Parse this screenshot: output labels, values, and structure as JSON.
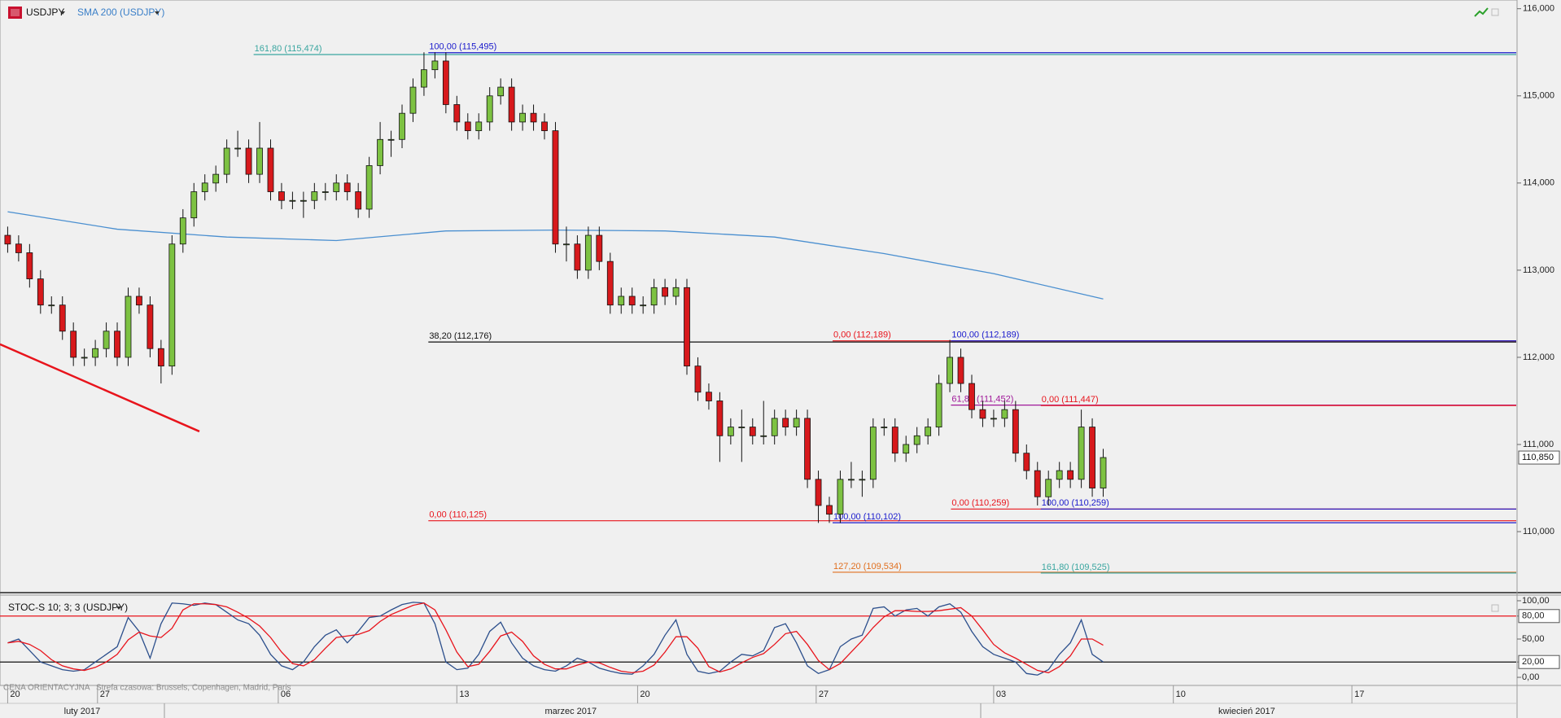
{
  "chart_data": [
    {
      "type": "candlestick",
      "title": "USDJPY",
      "xlim": [
        -0.7,
        137.7
      ],
      "ylim": [
        109.3,
        116.1
      ],
      "yticks": [
        {
          "value": 110,
          "label": "110,000"
        },
        {
          "value": 111,
          "label": "111,000"
        },
        {
          "value": 112,
          "label": "112,000"
        },
        {
          "value": 113,
          "label": "113,000"
        },
        {
          "value": 114,
          "label": "114,000"
        },
        {
          "value": 115,
          "label": "115,000"
        },
        {
          "value": 116,
          "label": "116,000"
        }
      ],
      "candles": {
        "up_color": "#7dc242",
        "down_color": "#d7191c",
        "open": [
          113.4,
          113.3,
          113.2,
          112.9,
          112.6,
          112.6,
          112.3,
          112.0,
          112.0,
          112.1,
          112.3,
          112.0,
          112.7,
          112.6,
          112.1,
          111.9,
          113.3,
          113.6,
          113.9,
          114.0,
          114.1,
          114.4,
          114.4,
          114.1,
          114.4,
          113.9,
          113.8,
          113.8,
          113.8,
          113.9,
          113.9,
          114.0,
          113.9,
          113.7,
          114.2,
          114.5,
          114.5,
          114.8,
          115.1,
          115.3,
          115.4,
          114.9,
          114.7,
          114.6,
          114.7,
          115.0,
          115.1,
          114.7,
          114.8,
          114.7,
          114.6,
          113.3,
          113.3,
          113.0,
          113.4,
          113.1,
          112.6,
          112.7,
          112.6,
          112.6,
          112.8,
          112.7,
          112.8,
          111.9,
          111.6,
          111.5,
          111.1,
          111.2,
          111.2,
          111.1,
          111.1,
          111.3,
          111.2,
          111.3,
          110.6,
          110.3,
          110.2,
          110.6,
          110.6,
          110.6,
          111.2,
          111.2,
          110.9,
          111.0,
          111.1,
          111.2,
          111.7,
          112.0,
          111.7,
          111.4,
          111.3,
          111.3,
          111.4,
          110.9,
          110.7,
          110.4,
          110.6,
          110.7,
          110.6,
          111.2,
          110.5
        ],
        "high": [
          113.5,
          113.4,
          113.3,
          113.0,
          112.7,
          112.7,
          112.4,
          112.1,
          112.2,
          112.4,
          112.4,
          112.8,
          112.8,
          112.7,
          112.2,
          113.4,
          113.7,
          114.0,
          114.1,
          114.2,
          114.5,
          114.6,
          114.5,
          114.7,
          114.5,
          114.0,
          113.9,
          113.9,
          114.0,
          114.0,
          114.1,
          114.1,
          114.0,
          114.3,
          114.7,
          114.6,
          114.9,
          115.2,
          115.5,
          115.5,
          115.5,
          115.0,
          114.8,
          114.8,
          115.1,
          115.2,
          115.2,
          114.9,
          114.9,
          114.8,
          114.7,
          113.5,
          113.4,
          113.5,
          113.5,
          113.2,
          112.8,
          112.8,
          112.7,
          112.9,
          112.9,
          112.9,
          112.9,
          112.0,
          111.7,
          111.6,
          111.3,
          111.4,
          111.3,
          111.5,
          111.4,
          111.4,
          111.4,
          111.4,
          110.7,
          110.4,
          110.7,
          110.8,
          110.7,
          111.3,
          111.3,
          111.3,
          111.1,
          111.2,
          111.3,
          111.8,
          112.2,
          112.1,
          111.8,
          111.5,
          111.4,
          111.5,
          111.5,
          111.0,
          110.8,
          110.7,
          110.8,
          110.8,
          111.4,
          111.3,
          110.95
        ],
        "low": [
          113.2,
          113.1,
          112.8,
          112.5,
          112.5,
          112.2,
          111.9,
          111.9,
          111.9,
          112.0,
          111.9,
          111.9,
          112.5,
          112.0,
          111.7,
          111.8,
          113.2,
          113.5,
          113.8,
          113.9,
          114.0,
          114.3,
          114.0,
          114.0,
          113.8,
          113.7,
          113.7,
          113.6,
          113.7,
          113.8,
          113.8,
          113.8,
          113.6,
          113.6,
          114.1,
          114.3,
          114.4,
          114.7,
          115.0,
          115.2,
          114.8,
          114.6,
          114.5,
          114.5,
          114.6,
          114.9,
          114.6,
          114.6,
          114.6,
          114.5,
          113.2,
          113.1,
          112.9,
          112.9,
          113.0,
          112.5,
          112.5,
          112.5,
          112.5,
          112.5,
          112.6,
          112.6,
          111.8,
          111.5,
          111.4,
          110.8,
          111.0,
          110.8,
          111.0,
          111.0,
          111.0,
          111.1,
          111.1,
          110.5,
          110.1,
          110.1,
          110.1,
          110.5,
          110.4,
          110.5,
          111.1,
          110.8,
          110.8,
          110.9,
          111.0,
          111.1,
          111.6,
          111.6,
          111.3,
          111.2,
          111.2,
          111.2,
          110.8,
          110.6,
          110.3,
          110.3,
          110.5,
          110.5,
          110.5,
          110.4,
          110.4
        ],
        "close": [
          113.3,
          113.2,
          112.9,
          112.6,
          112.6,
          112.3,
          112.0,
          112.0,
          112.1,
          112.3,
          112.0,
          112.7,
          112.6,
          112.1,
          111.9,
          113.3,
          113.6,
          113.9,
          114.0,
          114.1,
          114.4,
          114.4,
          114.1,
          114.4,
          113.9,
          113.8,
          113.8,
          113.8,
          113.9,
          113.9,
          114.0,
          113.9,
          113.7,
          114.2,
          114.5,
          114.5,
          114.8,
          115.1,
          115.3,
          115.4,
          114.9,
          114.7,
          114.6,
          114.7,
          115.0,
          115.1,
          114.7,
          114.8,
          114.7,
          114.6,
          113.3,
          113.3,
          113.0,
          113.4,
          113.1,
          112.6,
          112.7,
          112.6,
          112.6,
          112.8,
          112.7,
          112.8,
          111.9,
          111.6,
          111.5,
          111.1,
          111.2,
          111.2,
          111.1,
          111.1,
          111.3,
          111.2,
          111.3,
          110.6,
          110.3,
          110.2,
          110.6,
          110.6,
          110.6,
          111.2,
          111.2,
          110.9,
          111.0,
          111.1,
          111.2,
          111.7,
          112.0,
          111.7,
          111.4,
          111.3,
          111.3,
          111.4,
          110.9,
          110.7,
          110.4,
          110.6,
          110.7,
          110.6,
          111.2,
          110.5,
          110.85
        ]
      },
      "overlays": [
        {
          "name": "SMA 200 (USDJPY)",
          "color": "#4a8fd0",
          "x": [
            0,
            10,
            20,
            30,
            40,
            50,
            60,
            70,
            80,
            90,
            100
          ],
          "values": [
            113.67,
            113.47,
            113.38,
            113.34,
            113.45,
            113.46,
            113.45,
            113.38,
            113.19,
            112.96,
            112.67
          ]
        }
      ],
      "trendline": {
        "color": "#e8141c",
        "x": [
          -0.7,
          17.5
        ],
        "values": [
          112.15,
          111.15
        ]
      },
      "levels": [
        {
          "label": "161,80 (115,474)",
          "value": 115.474,
          "start": 22.45,
          "color": "#3aa6a0"
        },
        {
          "label": "100,00 (115,495)",
          "value": 115.495,
          "start": 38.4,
          "color": "#1a1acc"
        },
        {
          "label": "38,20 (112,176)",
          "value": 112.176,
          "start": 38.4,
          "color": "#111111"
        },
        {
          "label": "0,00 (112,189)",
          "value": 112.189,
          "start": 75.3,
          "color": "#e8141c"
        },
        {
          "label": "100,00 (112,189)",
          "value": 112.189,
          "start": 86.1,
          "color": "#1a1acc"
        },
        {
          "label": "61,80 (111,452)",
          "value": 111.452,
          "start": 86.1,
          "color": "#a0189a"
        },
        {
          "label": "0,00 (111,447)",
          "value": 111.447,
          "start": 94.3,
          "color": "#e8141c"
        },
        {
          "label": "0,00 (110,259)",
          "value": 110.259,
          "start": 86.1,
          "color": "#e8141c"
        },
        {
          "label": "100,00 (110,259)",
          "value": 110.259,
          "start": 94.3,
          "color": "#1a1acc"
        },
        {
          "label": "0,00 (110,125)",
          "value": 110.125,
          "start": 38.4,
          "color": "#e8141c"
        },
        {
          "label": "100,00 (110,102)",
          "value": 110.102,
          "start": 75.3,
          "color": "#1a1acc"
        },
        {
          "label": "127,20 (109,534)",
          "value": 109.534,
          "start": 75.3,
          "color": "#e07020"
        },
        {
          "label": "161,80 (109,525)",
          "value": 109.525,
          "start": 94.3,
          "color": "#3aa6a0"
        }
      ],
      "last_price": {
        "value": 110.85,
        "label": "110,850"
      }
    },
    {
      "type": "line",
      "title": "STOC-S 10; 3; 3 (USDJPY)",
      "ylim": [
        -10.6,
        107.4
      ],
      "yticks": [
        {
          "value": 0,
          "label": "0,00"
        },
        {
          "value": 20,
          "label": "20,00",
          "boxed": true
        },
        {
          "value": 50,
          "label": "50,00"
        },
        {
          "value": 80,
          "label": "80,00",
          "boxed": true
        },
        {
          "value": 100,
          "label": "100,00"
        }
      ],
      "levels": [
        {
          "value": 80,
          "color": "#e8141c"
        },
        {
          "value": 20,
          "color": "#111111"
        }
      ],
      "series": [
        {
          "color": "#2c4f8c",
          "values": [
            45,
            50,
            35,
            20,
            15,
            10,
            8,
            10,
            20,
            30,
            40,
            78,
            60,
            25,
            70,
            97,
            96,
            94,
            97,
            95,
            85,
            75,
            70,
            55,
            30,
            15,
            10,
            20,
            40,
            55,
            62,
            45,
            60,
            78,
            80,
            88,
            95,
            98,
            97,
            70,
            20,
            10,
            12,
            30,
            60,
            72,
            45,
            25,
            15,
            10,
            8,
            15,
            25,
            20,
            12,
            8,
            5,
            4,
            15,
            30,
            55,
            75,
            30,
            8,
            5,
            8,
            20,
            30,
            28,
            35,
            65,
            70,
            45,
            15,
            5,
            10,
            40,
            50,
            55,
            90,
            92,
            80,
            88,
            90,
            80,
            92,
            96,
            85,
            60,
            40,
            30,
            25,
            20,
            5,
            3,
            10,
            30,
            45,
            75,
            30,
            20
          ]
        },
        {
          "color": "#e8141c",
          "values": [
            45,
            47,
            43,
            35,
            23,
            15,
            11,
            9,
            13,
            20,
            30,
            49,
            59,
            54,
            52,
            64,
            88,
            96,
            96,
            95,
            92,
            85,
            77,
            67,
            52,
            33,
            18,
            15,
            23,
            38,
            52,
            54,
            56,
            61,
            73,
            82,
            88,
            94,
            97,
            88,
            62,
            33,
            14,
            17,
            34,
            54,
            59,
            47,
            28,
            17,
            11,
            11,
            16,
            20,
            19,
            13,
            8,
            6,
            8,
            16,
            33,
            53,
            53,
            38,
            14,
            7,
            11,
            19,
            26,
            31,
            43,
            57,
            60,
            43,
            22,
            10,
            18,
            33,
            48,
            65,
            79,
            87,
            87,
            86,
            86,
            87,
            89,
            91,
            80,
            62,
            43,
            32,
            25,
            17,
            9,
            6,
            14,
            28,
            50,
            50,
            42
          ]
        }
      ],
      "xticks": [
        {
          "value": 0,
          "label": "20"
        },
        {
          "value": 8.2,
          "label": "27"
        },
        {
          "value": 24.7,
          "label": "06"
        },
        {
          "value": 41,
          "label": "13"
        },
        {
          "value": 57.5,
          "label": "20"
        },
        {
          "value": 73.8,
          "label": "27"
        },
        {
          "value": 90,
          "label": "03"
        },
        {
          "value": 106.4,
          "label": "10"
        },
        {
          "value": 122.7,
          "label": "17"
        }
      ],
      "months": [
        {
          "value": 6.8,
          "label": "luty 2017"
        },
        {
          "value": 51.4,
          "label": "marzec 2017"
        },
        {
          "value": 113.1,
          "label": "kwiecień 2017"
        }
      ]
    }
  ],
  "footer": {
    "price_note": "CENA ORIENTACYJNA",
    "timezone": "Strefa czasowa: Brussels, Copenhagen, Madrid, Paris"
  }
}
